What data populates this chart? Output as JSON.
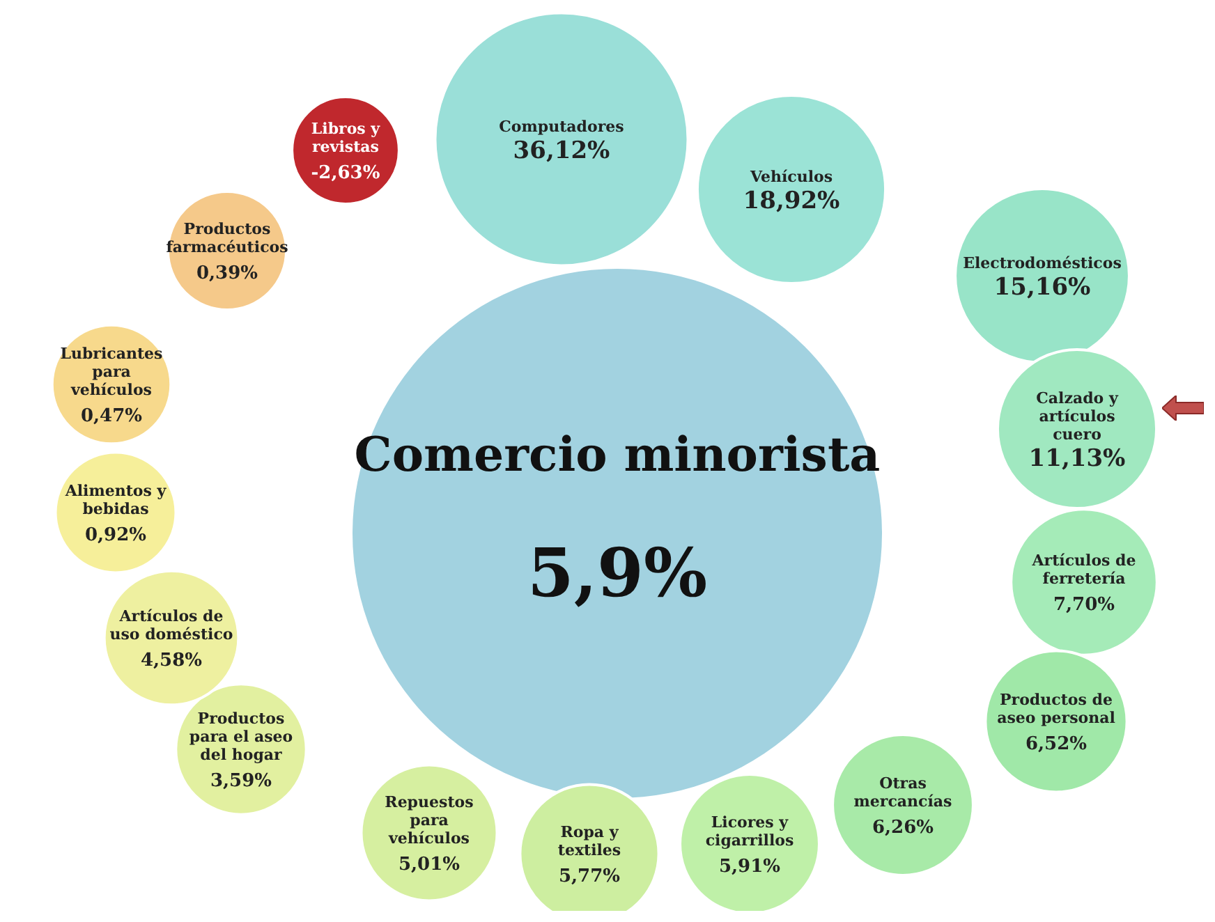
{
  "chart_data": {
    "type": "other",
    "title": "Comercio minorista",
    "subtitle": "5,9%",
    "categories": [
      "Computadores",
      "Vehículos",
      "Electrodomésticos",
      "Calzado y artículos cuero",
      "Artículos de ferretería",
      "Productos de aseo personal",
      "Otras mercancías",
      "Licores y cigarrillos",
      "Ropa y textiles",
      "Repuestos para vehículos",
      "Productos para el aseo del hogar",
      "Artículos de uso doméstico",
      "Alimentos y bebidas",
      "Lubricantes para vehículos",
      "Productos farmacéuticos",
      "Libros y revistas"
    ],
    "values": [
      36.12,
      18.92,
      15.16,
      11.13,
      7.7,
      6.52,
      6.26,
      5.91,
      5.77,
      5.01,
      3.59,
      4.58,
      0.92,
      0.47,
      0.39,
      -2.63
    ],
    "value_labels": [
      "36,12%",
      "18,92%",
      "15,16%",
      "11,13%",
      "7,70%",
      "6,52%",
      "6,26%",
      "5,91%",
      "5,77%",
      "5,01%",
      "3,59%",
      "4,58%",
      "0,92%",
      "0,47%",
      "0,39%",
      "-2,63%"
    ],
    "colors": [
      "#9adfd8",
      "#9be3d6",
      "#98e4c8",
      "#a0e8c0",
      "#a5ebb8",
      "#a0e8a8",
      "#a8eaa8",
      "#bff0a8",
      "#cdeea0",
      "#d6efa0",
      "#e2f0a0",
      "#eef0a0",
      "#f6ef9a",
      "#f7d98c",
      "#f5c98a",
      "#c0282d"
    ]
  }
}
